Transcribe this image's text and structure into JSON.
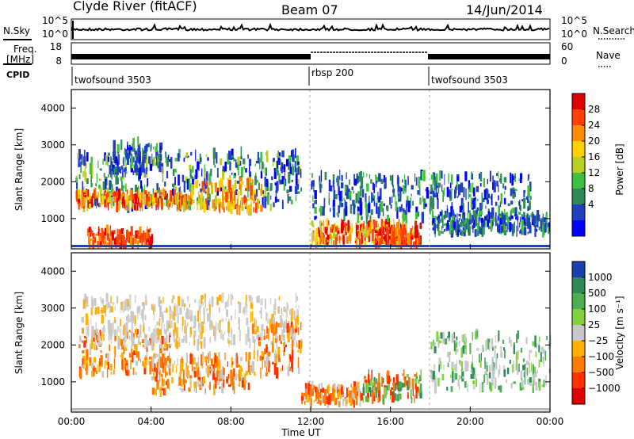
{
  "header": {
    "station": "Clyde River (fitACF)",
    "beam": "Beam 07",
    "date": "14/Jun/2014"
  },
  "top_panels": {
    "nsky_label": "N.Sky",
    "nsky_ticks": [
      "10^5",
      "10^0"
    ],
    "nsearch_label": "N.Search",
    "nsearch_ticks": [
      "10^5",
      "10^0"
    ],
    "freq_label_1": "Freq.",
    "freq_label_2": "[MHz]",
    "freq_ticks": [
      "18",
      "8"
    ],
    "nave_label": "Nave",
    "nave_ticks": [
      "60",
      "0"
    ],
    "cpid_label": "CPID",
    "cpid_segments": [
      {
        "name": "twofsound 3503",
        "start_hour": 0,
        "end_hour": 12
      },
      {
        "name": "rbsp 200",
        "start_hour": 12,
        "end_hour": 18
      },
      {
        "name": "twofsound 3503",
        "start_hour": 18,
        "end_hour": 24
      }
    ]
  },
  "axes": {
    "ylabel": "Slant Range [km]",
    "xlabel": "Time UT",
    "x_ticks": [
      "00:00",
      "04:00",
      "08:00",
      "12:00",
      "16:00",
      "20:00",
      "00:00"
    ],
    "y_ticks": [
      "1000",
      "2000",
      "3000",
      "4000"
    ]
  },
  "power_scale": {
    "label": "Power [dB]",
    "ticks": [
      "28",
      "24",
      "20",
      "16",
      "12",
      "8",
      "4"
    ],
    "colors": [
      "#e00000",
      "#ff4000",
      "#ff8c00",
      "#ffd000",
      "#b8d020",
      "#40c040",
      "#2e8b57",
      "#2040c0",
      "#0000ff"
    ]
  },
  "velocity_scale": {
    "label": "Velocity [m s⁻¹]",
    "ticks": [
      "1000",
      "500",
      "100",
      "25",
      "−25",
      "−100",
      "−500",
      "−1000"
    ],
    "colors": [
      "#1a3fb0",
      "#2e8b57",
      "#4caf50",
      "#7fd440",
      "#c8c8c8",
      "#ffb000",
      "#ff7a00",
      "#ff3000",
      "#e00000"
    ]
  },
  "chart_data": {
    "type": "heatmap",
    "x_range_hours": [
      0,
      24
    ],
    "y_range_km": [
      180,
      4500
    ],
    "panels": [
      {
        "name": "Power",
        "regions": [
          {
            "t": [
              0.2,
              11.5
            ],
            "r": [
              1300,
              2800
            ],
            "level": "green-blue"
          },
          {
            "t": [
              0.2,
              6.0
            ],
            "r": [
              1300,
              1700
            ],
            "level": "red-orange"
          },
          {
            "t": [
              0.8,
              4.0
            ],
            "r": [
              250,
              700
            ],
            "level": "red"
          },
          {
            "t": [
              2.0,
              4.5
            ],
            "r": [
              2200,
              3100
            ],
            "level": "blue-green"
          },
          {
            "t": [
              6.0,
              9.5
            ],
            "r": [
              1200,
              2000
            ],
            "level": "orange"
          },
          {
            "t": [
              12.0,
              17.5
            ],
            "r": [
              300,
              900
            ],
            "level": "red-orange"
          },
          {
            "t": [
              15.0,
              17.5
            ],
            "r": [
              300,
              700
            ],
            "level": "red"
          },
          {
            "t": [
              12.0,
              23.0
            ],
            "r": [
              1000,
              2200
            ],
            "level": "blue-green"
          },
          {
            "t": [
              18.0,
              24.0
            ],
            "r": [
              600,
              1100
            ],
            "level": "blue-green"
          }
        ]
      },
      {
        "name": "Velocity",
        "regions": [
          {
            "t": [
              0.3,
              5.0
            ],
            "r": [
              1200,
              2400
            ],
            "level": "orange"
          },
          {
            "t": [
              0.5,
              11.5
            ],
            "r": [
              2000,
              3300
            ],
            "level": "grey"
          },
          {
            "t": [
              4.0,
              9.0
            ],
            "r": [
              700,
              1700
            ],
            "level": "orange"
          },
          {
            "t": [
              9.0,
              11.5
            ],
            "r": [
              1200,
              2600
            ],
            "level": "orange"
          },
          {
            "t": [
              11.5,
              14.5
            ],
            "r": [
              400,
              900
            ],
            "level": "orange"
          },
          {
            "t": [
              14.5,
              17.5
            ],
            "r": [
              500,
              1200
            ],
            "level": "green-orange"
          },
          {
            "t": [
              18.0,
              24.0
            ],
            "r": [
              800,
              2300
            ],
            "level": "green-grey"
          }
        ]
      }
    ]
  }
}
